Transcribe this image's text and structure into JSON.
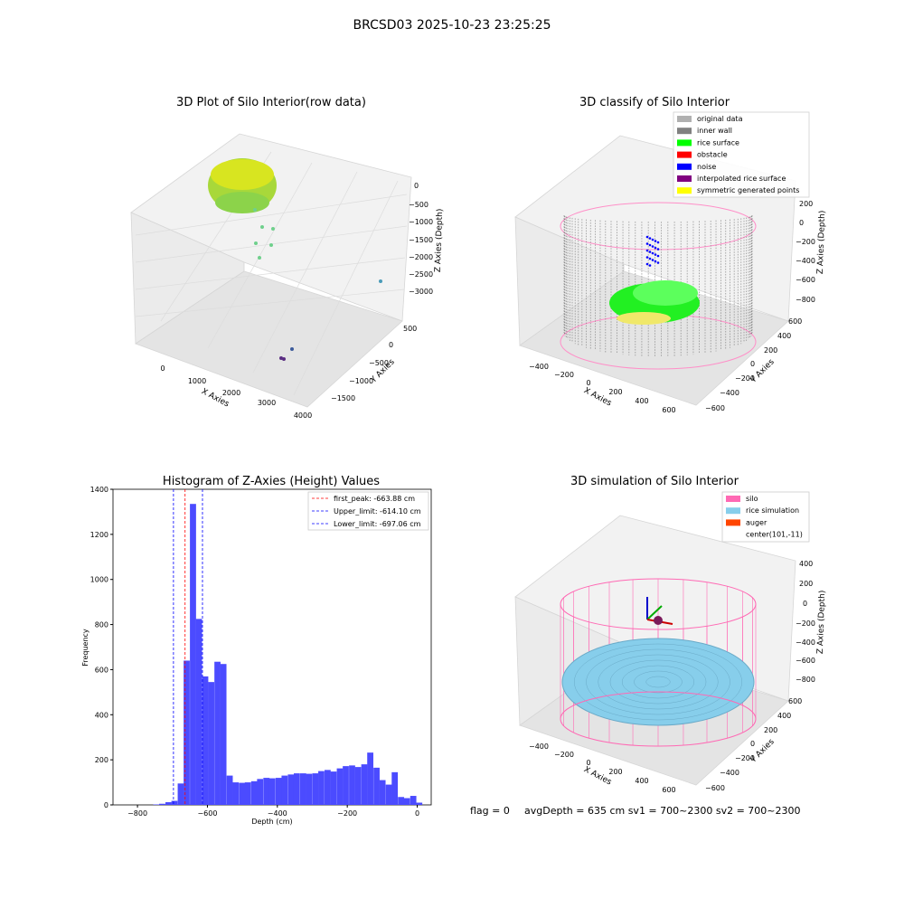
{
  "suptitle": "BRCSD03 2025-10-23 23:25:25",
  "footer": {
    "flag": "flag = 0",
    "avg": "avgDepth = 635 cm  sv1 = 700~2300  sv2 = 700~2300"
  },
  "chart_data": [
    {
      "type": "scatter",
      "title": "3D Plot of Silo Interior(row data)",
      "xlabel": "X Axies",
      "ylabel": "Y Axies",
      "zlabel": "Z Axies (Depth)",
      "x_ticks": [
        "0",
        "1000",
        "2000",
        "3000",
        "4000"
      ],
      "y_ticks": [
        "500",
        "0",
        "−500",
        "−1000",
        "−1500"
      ],
      "z_ticks": [
        "0",
        "−500",
        "−1000",
        "−1500",
        "−2000",
        "−2500",
        "−3000"
      ],
      "points": [
        {
          "x": 200,
          "y": 100,
          "z": -600
        },
        {
          "x": 400,
          "y": 150,
          "z": -900
        },
        {
          "x": 800,
          "y": 100,
          "z": -1200
        },
        {
          "x": 600,
          "y": -100,
          "z": -1500
        },
        {
          "x": 1000,
          "y": 0,
          "z": -1700
        },
        {
          "x": 3900,
          "y": 300,
          "z": -2300
        },
        {
          "x": 2500,
          "y": -700,
          "z": -3100
        },
        {
          "x": 2400,
          "y": -800,
          "z": -3300
        }
      ]
    },
    {
      "type": "scatter",
      "title": "3D classify of Silo Interior",
      "xlabel": "X Axies",
      "ylabel": "Y Axies",
      "zlabel": "Z Axies (Depth)",
      "x_ticks": [
        "−400",
        "−200",
        "0",
        "200",
        "400",
        "600"
      ],
      "y_ticks": [
        "600",
        "400",
        "200",
        "0",
        "−200",
        "−400",
        "−600"
      ],
      "z_ticks": [
        "200",
        "0",
        "−200",
        "−400",
        "−600",
        "−800"
      ],
      "legend": [
        {
          "label": "original data",
          "color": "#b0b0b0"
        },
        {
          "label": "inner wall",
          "color": "#808080"
        },
        {
          "label": "rice surface",
          "color": "#00ff00"
        },
        {
          "label": "obstacle",
          "color": "#ff0000"
        },
        {
          "label": "noise",
          "color": "#0000ff"
        },
        {
          "label": "interpolated rice surface",
          "color": "#800080"
        },
        {
          "label": "symmetric generated points",
          "color": "#ffff00"
        }
      ]
    },
    {
      "type": "bar",
      "title": "Histogram of Z-Axies (Height) Values",
      "xlabel": "Depth (cm)",
      "ylabel": "Frequency",
      "xlim": [
        -870,
        40
      ],
      "ylim": [
        0,
        1400
      ],
      "x_ticks": [
        -800,
        -600,
        -400,
        -200,
        0
      ],
      "y_ticks": [
        0,
        200,
        400,
        600,
        800,
        1000,
        1200,
        1400
      ],
      "bin_width": 17.5,
      "bins_start": [
        -755,
        -738,
        -720,
        -703,
        -685,
        -668,
        -650,
        -633,
        -615,
        -598,
        -580,
        -563,
        -545,
        -528,
        -510,
        -493,
        -475,
        -458,
        -440,
        -423,
        -405,
        -388,
        -370,
        -353,
        -335,
        -318,
        -300,
        -283,
        -265,
        -248,
        -230,
        -213,
        -195,
        -178,
        -160,
        -143,
        -125,
        -108,
        -90,
        -73,
        -55,
        -38,
        -20,
        -3
      ],
      "values": [
        2,
        5,
        12,
        18,
        95,
        640,
        1335,
        825,
        570,
        545,
        635,
        625,
        130,
        100,
        98,
        100,
        105,
        115,
        120,
        118,
        120,
        130,
        135,
        140,
        140,
        138,
        140,
        150,
        155,
        148,
        162,
        172,
        175,
        168,
        180,
        232,
        165,
        110,
        90,
        145,
        35,
        30,
        40,
        10
      ],
      "series": [
        {
          "name": "first_peak: -663.88 cm",
          "value": -663.88,
          "color": "#ff0000"
        },
        {
          "name": "Upper_limit: -614.10 cm",
          "value": -614.1,
          "color": "#0000ff"
        },
        {
          "name": "Lower_limit: -697.06 cm",
          "value": -697.06,
          "color": "#0000ff"
        }
      ],
      "bar_color": "#4b4bff"
    },
    {
      "type": "scatter",
      "title": "3D simulation of Silo Interior",
      "xlabel": "X Axies",
      "ylabel": "Y Axies",
      "zlabel": "Z Axies (Depth)",
      "x_ticks": [
        "−400",
        "−200",
        "0",
        "200",
        "400",
        "600"
      ],
      "y_ticks": [
        "600",
        "400",
        "200",
        "0",
        "−200",
        "−400",
        "−600"
      ],
      "z_ticks": [
        "400",
        "200",
        "0",
        "−200",
        "−400",
        "−600",
        "−800"
      ],
      "legend": [
        {
          "label": "silo",
          "color": "#ff69b4"
        },
        {
          "label": "rice simulation",
          "color": "#87ceeb"
        },
        {
          "label": "auger",
          "color": "#ff4500"
        },
        {
          "label": "center(101,-11)",
          "color": "#ffffff"
        }
      ]
    }
  ]
}
